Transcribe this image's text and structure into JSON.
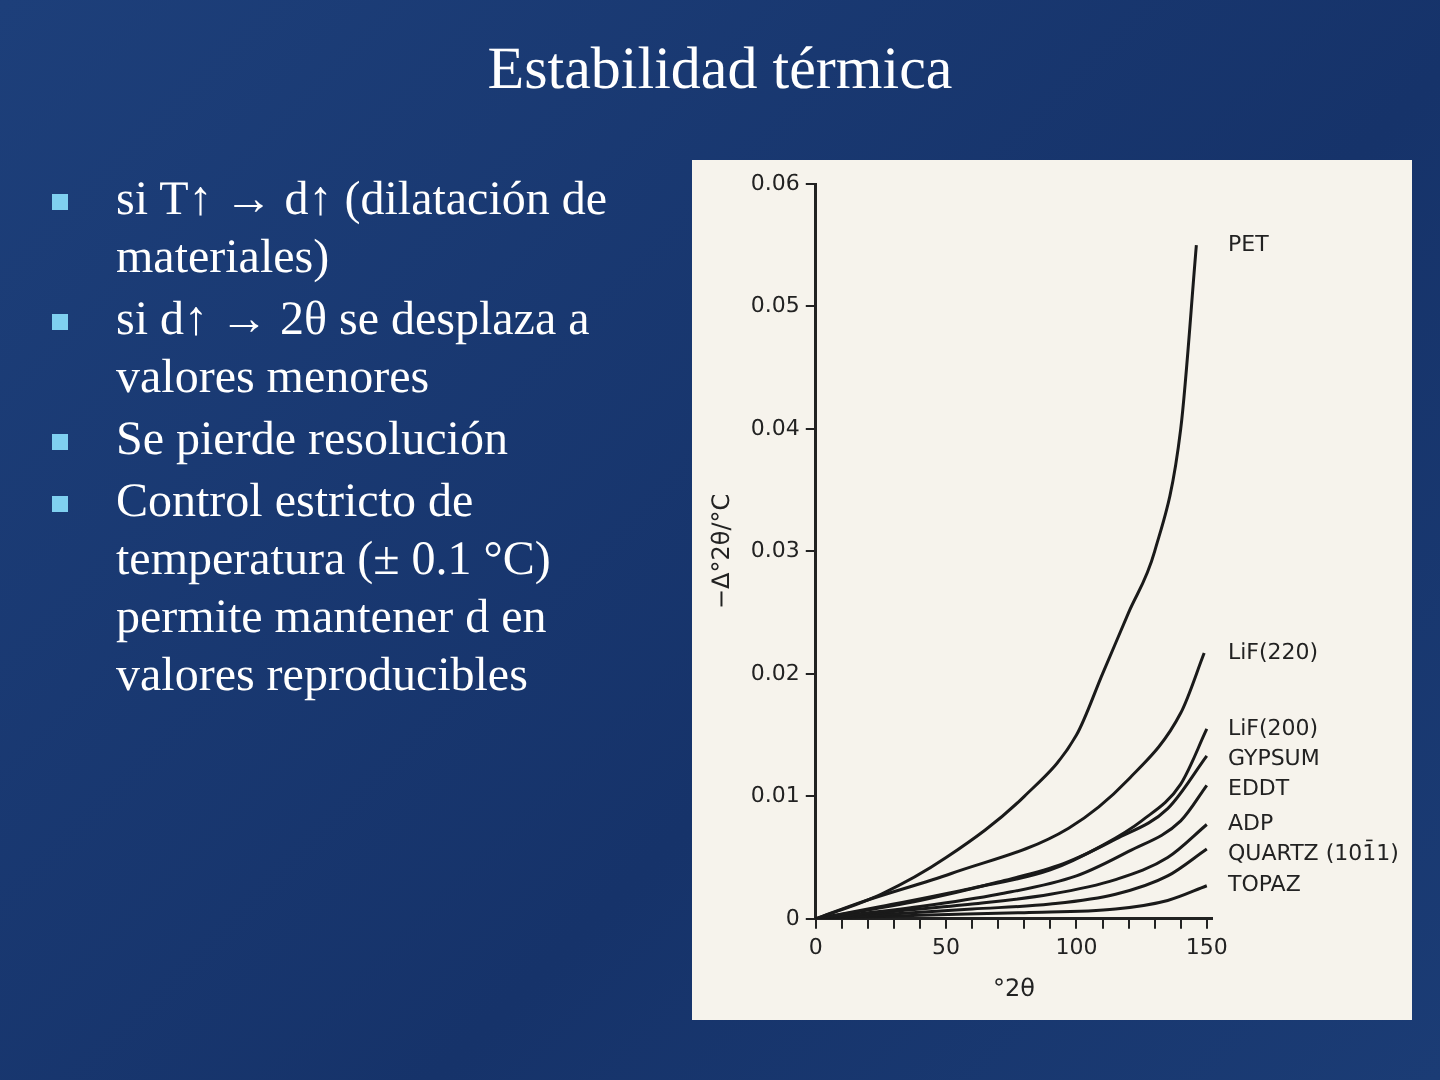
{
  "chart_data": {
    "type": "line",
    "title": "Estabilidad térmica",
    "annotations": [
      "si T↑ → d↑ (dilatación de materiales)",
      "si d↑ → 2θ se desplaza a valores menores",
      "Se pierde resolución",
      "Control estricto de temperatura (± 0.1 °C) permite mantener d en valores reproducibles"
    ],
    "xlabel": "°2θ",
    "ylabel": "−Δ°2θ/°C",
    "xlim": [
      0,
      152
    ],
    "ylim": [
      0,
      0.06
    ],
    "xticks": [
      0,
      {
        "value": 10,
        "label": null
      },
      {
        "value": 20,
        "label": null
      },
      {
        "value": 30,
        "label": null
      },
      {
        "value": 40,
        "label": null
      },
      50,
      {
        "value": 60,
        "label": null
      },
      {
        "value": 70,
        "label": null
      },
      {
        "value": 80,
        "label": null
      },
      {
        "value": 90,
        "label": null
      },
      100,
      {
        "value": 110,
        "label": null
      },
      {
        "value": 120,
        "label": null
      },
      {
        "value": 130,
        "label": null
      },
      {
        "value": 140,
        "label": null
      },
      150
    ],
    "yticks": [
      0,
      0.01,
      0.02,
      0.03,
      0.04,
      0.05,
      0.06
    ],
    "grid": false,
    "legend": false,
    "marker": "none",
    "line_style": "solid",
    "series": [
      {
        "name": "PET",
        "color": "#1a1a1a",
        "x": [
          0,
          25,
          50,
          80,
          100,
          110,
          120,
          130,
          140,
          146
        ],
        "values": [
          0,
          0.002,
          0.005,
          0.01,
          0.015,
          0.02,
          0.025,
          0.03,
          0.04,
          0.055
        ]
      },
      {
        "name": "LiF(220)",
        "color": "#1a1a1a",
        "x": [
          0,
          18,
          52,
          97,
          120,
          140,
          149
        ],
        "values": [
          0,
          0.0014,
          0.0037,
          0.0074,
          0.0114,
          0.0168,
          0.0217
        ]
      },
      {
        "name": "LiF(200)",
        "color": "#1a1a1a",
        "x": [
          0,
          25,
          60,
          90,
          110,
          125,
          140,
          150
        ],
        "values": [
          0,
          0.001,
          0.0025,
          0.004,
          0.006,
          0.008,
          0.011,
          0.0155
        ]
      },
      {
        "name": "GYPSUM",
        "color": "#1a1a1a",
        "x": [
          0,
          40,
          70,
          95,
          115,
          135,
          150
        ],
        "values": [
          0,
          0.0015,
          0.003,
          0.0045,
          0.0065,
          0.009,
          0.0133
        ]
      },
      {
        "name": "EDDT",
        "color": "#1a1a1a",
        "x": [
          0,
          40,
          70,
          100,
          120,
          140,
          150
        ],
        "values": [
          0,
          0.001,
          0.002,
          0.0035,
          0.0055,
          0.008,
          0.0109
        ]
      },
      {
        "name": "ADP",
        "color": "#1a1a1a",
        "x": [
          0,
          30,
          60,
          90,
          115,
          135,
          150
        ],
        "values": [
          0,
          0.0006,
          0.0012,
          0.002,
          0.0032,
          0.005,
          0.0077
        ]
      },
      {
        "name": "QUARTZ (101̄1)",
        "color": "#1a1a1a",
        "x": [
          0,
          60,
          90,
          115,
          135,
          150
        ],
        "values": [
          0,
          0.0008,
          0.0012,
          0.002,
          0.0035,
          0.0057
        ]
      },
      {
        "name": "TOPAZ",
        "color": "#1a1a1a",
        "x": [
          0,
          40,
          80,
          115,
          135,
          150
        ],
        "values": [
          0,
          0.0003,
          0.0005,
          0.0008,
          0.0015,
          0.0027
        ]
      }
    ]
  }
}
